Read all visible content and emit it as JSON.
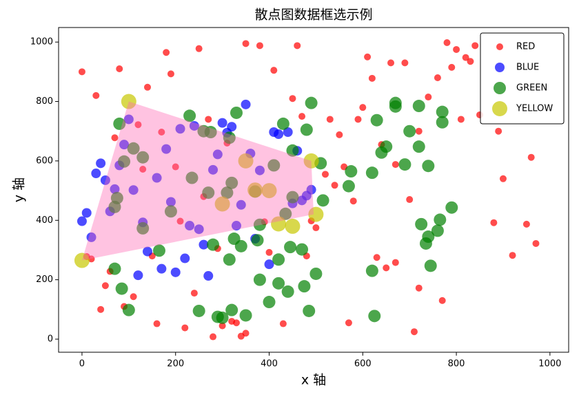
{
  "chart_data": {
    "type": "scatter",
    "title": "散点图数据框选示例",
    "x_label": "x 轴",
    "y_label": "y 轴",
    "xlim": [
      -50,
      1040
    ],
    "ylim": [
      -44,
      1049
    ],
    "xticks": [
      0,
      200,
      400,
      600,
      800,
      1000
    ],
    "yticks": [
      0,
      200,
      400,
      600,
      800,
      1000
    ],
    "legend_position": "upper right",
    "selection_polygon": {
      "color": "#ff69b4",
      "x": [
        100,
        490,
        495,
        0
      ],
      "y": [
        800,
        600,
        420,
        265
      ]
    },
    "series": [
      {
        "name": "RED",
        "color": "#ff0000",
        "size": 5,
        "x": [
          0,
          30,
          80,
          140,
          180,
          190,
          250,
          350,
          380,
          410,
          460,
          450,
          470,
          530,
          550,
          600,
          590,
          610,
          620,
          660,
          690,
          720,
          740,
          760,
          780,
          790,
          800,
          820,
          830,
          840,
          850,
          890,
          810,
          900,
          960,
          880,
          950,
          970,
          920,
          700,
          670,
          640,
          650,
          670,
          630,
          770,
          720,
          710,
          570,
          580,
          560,
          540,
          520,
          500,
          490,
          480,
          430,
          400,
          390,
          350,
          340,
          330,
          320,
          300,
          280,
          290,
          260,
          240,
          220,
          200,
          210,
          170,
          120,
          130,
          150,
          160,
          110,
          90,
          70,
          60,
          50,
          40,
          20,
          10,
          270,
          310
        ],
        "values": [
          900,
          820,
          910,
          848,
          965,
          893,
          978,
          995,
          988,
          905,
          988,
          810,
          750,
          740,
          688,
          780,
          740,
          950,
          878,
          930,
          930,
          700,
          815,
          880,
          998,
          915,
          975,
          948,
          935,
          988,
          755,
          700,
          740,
          540,
          612,
          392,
          387,
          322,
          282,
          470,
          588,
          655,
          240,
          258,
          275,
          130,
          172,
          25,
          55,
          465,
          580,
          518,
          555,
          375,
          398,
          280,
          52,
          292,
          395,
          20,
          10,
          55,
          60,
          45,
          8,
          305,
          480,
          155,
          38,
          580,
          397,
          697,
          722,
          572,
          280,
          52,
          143,
          110,
          678,
          228,
          180,
          100,
          270,
          278,
          740,
          660
        ]
      },
      {
        "name": "BLUE",
        "color": "#0000ff",
        "size": 7,
        "x": [
          0,
          10,
          20,
          30,
          40,
          50,
          60,
          70,
          80,
          90,
          100,
          110,
          120,
          130,
          140,
          160,
          170,
          180,
          190,
          200,
          210,
          220,
          230,
          240,
          250,
          260,
          270,
          280,
          290,
          300,
          310,
          320,
          330,
          340,
          350,
          360,
          370,
          380,
          400,
          410,
          420,
          440,
          450,
          460,
          470,
          480,
          490
        ],
        "values": [
          397,
          425,
          343,
          558,
          592,
          535,
          430,
          505,
          585,
          655,
          740,
          502,
          215,
          393,
          295,
          543,
          237,
          640,
          462,
          225,
          708,
          272,
          382,
          718,
          370,
          318,
          213,
          570,
          622,
          728,
          695,
          715,
          382,
          452,
          790,
          625,
          338,
          568,
          252,
          697,
          690,
          697,
          457,
          634,
          467,
          483,
          503
        ]
      },
      {
        "name": "GREEN",
        "color": "#008000",
        "size": 9,
        "x": [
          70,
          70,
          75,
          80,
          85,
          90,
          100,
          110,
          130,
          130,
          165,
          190,
          230,
          235,
          250,
          260,
          270,
          275,
          280,
          290,
          300,
          310,
          315,
          315,
          320,
          320,
          325,
          330,
          340,
          350,
          370,
          375,
          380,
          380,
          400,
          410,
          420,
          420,
          430,
          435,
          440,
          445,
          450,
          450,
          470,
          475,
          480,
          485,
          490,
          500,
          510,
          515,
          570,
          575,
          620,
          620,
          625,
          630,
          640,
          650,
          690,
          700,
          720,
          720,
          725,
          735,
          740,
          740,
          745,
          760,
          765,
          770,
          770,
          790,
          670,
          670
        ],
        "values": [
          237,
          445,
          475,
          725,
          170,
          598,
          98,
          642,
          612,
          373,
          298,
          430,
          752,
          543,
          95,
          700,
          493,
          697,
          318,
          75,
          72,
          493,
          678,
          268,
          98,
          526,
          338,
          762,
          313,
          80,
          497,
          333,
          200,
          385,
          125,
          585,
          188,
          268,
          725,
          422,
          160,
          310,
          478,
          635,
          302,
          178,
          705,
          95,
          795,
          220,
          592,
          467,
          515,
          565,
          560,
          230,
          78,
          737,
          628,
          648,
          588,
          700,
          785,
          648,
          387,
          322,
          345,
          583,
          247,
          365,
          402,
          765,
          730,
          443,
          783,
          795
        ]
      },
      {
        "name": "YELLOW",
        "color": "#c8c800",
        "size": 11,
        "x": [
          100,
          0,
          490,
          500,
          350,
          370,
          400,
          300,
          420,
          450
        ],
        "values": [
          800,
          265,
          600,
          420,
          600,
          502,
          500,
          455,
          388,
          380
        ]
      }
    ]
  }
}
